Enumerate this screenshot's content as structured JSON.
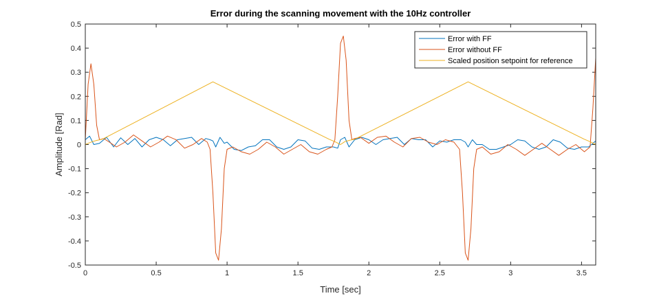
{
  "chart_data": {
    "type": "line",
    "title": "Error during the scanning movement with the 10Hz controller",
    "xlabel": "Time [sec]",
    "ylabel": "Amplitude [Rad]",
    "xlim": [
      0,
      3.6
    ],
    "ylim": [
      -0.5,
      0.5
    ],
    "xticks": [
      0,
      0.5,
      1,
      1.5,
      2,
      2.5,
      3,
      3.5
    ],
    "xtick_labels": [
      "0",
      "0.5",
      "1",
      "1.5",
      "2",
      "2.5",
      "3",
      "3.5"
    ],
    "yticks": [
      -0.5,
      -0.4,
      -0.3,
      -0.2,
      -0.1,
      0,
      0.1,
      0.2,
      0.3,
      0.4,
      0.5
    ],
    "ytick_labels": [
      "-0.5",
      "-0.4",
      "-0.3",
      "-0.2",
      "-0.1",
      "0",
      "0.1",
      "0.2",
      "0.3",
      "0.4",
      "0.5"
    ],
    "grid": false,
    "legend_position": "top-right",
    "series": [
      {
        "name": "Error with FF",
        "color": "#0072BD",
        "x": [
          0,
          0.03,
          0.06,
          0.1,
          0.15,
          0.2,
          0.25,
          0.3,
          0.35,
          0.4,
          0.45,
          0.5,
          0.55,
          0.6,
          0.65,
          0.7,
          0.75,
          0.8,
          0.85,
          0.88,
          0.9,
          0.92,
          0.95,
          0.98,
          1.0,
          1.05,
          1.1,
          1.15,
          1.2,
          1.25,
          1.3,
          1.35,
          1.4,
          1.45,
          1.5,
          1.55,
          1.6,
          1.65,
          1.7,
          1.75,
          1.78,
          1.8,
          1.83,
          1.86,
          1.9,
          1.95,
          2.0,
          2.05,
          2.1,
          2.15,
          2.2,
          2.25,
          2.3,
          2.35,
          2.4,
          2.45,
          2.5,
          2.55,
          2.6,
          2.65,
          2.68,
          2.7,
          2.73,
          2.76,
          2.8,
          2.85,
          2.9,
          2.95,
          3.0,
          3.05,
          3.1,
          3.15,
          3.2,
          3.25,
          3.3,
          3.35,
          3.4,
          3.45,
          3.5,
          3.55,
          3.58,
          3.6
        ],
        "y": [
          0.02,
          0.035,
          0.0,
          0.005,
          0.03,
          -0.01,
          0.028,
          0.0,
          0.025,
          -0.01,
          0.02,
          0.03,
          0.02,
          -0.005,
          0.02,
          0.025,
          0.03,
          0.0,
          0.025,
          0.02,
          0.015,
          -0.01,
          0.03,
          0.005,
          0.01,
          -0.02,
          -0.025,
          -0.01,
          -0.005,
          0.02,
          0.02,
          -0.01,
          -0.02,
          -0.01,
          0.02,
          0.015,
          -0.015,
          -0.02,
          -0.01,
          -0.01,
          -0.015,
          0.02,
          0.03,
          -0.01,
          0.02,
          0.03,
          0.02,
          0.0,
          0.02,
          0.025,
          0.03,
          0.0,
          0.025,
          0.02,
          0.02,
          -0.01,
          0.015,
          0.01,
          0.02,
          0.02,
          0.01,
          -0.01,
          0.02,
          0.0,
          0.0,
          -0.02,
          -0.02,
          -0.01,
          0.0,
          0.02,
          0.015,
          -0.01,
          -0.02,
          -0.01,
          0.02,
          0.01,
          -0.015,
          -0.02,
          -0.01,
          -0.01,
          0.005,
          0.015
        ]
      },
      {
        "name": "Error without FF",
        "color": "#D95319",
        "x": [
          0,
          0.02,
          0.04,
          0.06,
          0.08,
          0.1,
          0.13,
          0.17,
          0.22,
          0.28,
          0.34,
          0.4,
          0.46,
          0.52,
          0.58,
          0.64,
          0.7,
          0.76,
          0.82,
          0.86,
          0.88,
          0.9,
          0.92,
          0.94,
          0.96,
          0.98,
          1.0,
          1.04,
          1.1,
          1.16,
          1.22,
          1.28,
          1.34,
          1.4,
          1.46,
          1.52,
          1.58,
          1.64,
          1.7,
          1.74,
          1.76,
          1.78,
          1.8,
          1.82,
          1.84,
          1.86,
          1.88,
          1.9,
          1.94,
          2.0,
          2.06,
          2.12,
          2.18,
          2.24,
          2.3,
          2.36,
          2.42,
          2.48,
          2.54,
          2.6,
          2.64,
          2.66,
          2.68,
          2.7,
          2.72,
          2.74,
          2.76,
          2.8,
          2.86,
          2.92,
          2.98,
          3.04,
          3.1,
          3.16,
          3.22,
          3.28,
          3.34,
          3.4,
          3.46,
          3.52,
          3.56,
          3.58,
          3.6
        ],
        "y": [
          0.02,
          0.25,
          0.335,
          0.25,
          0.08,
          0.02,
          0.025,
          0.01,
          -0.01,
          0.01,
          0.04,
          0.015,
          -0.01,
          0.01,
          0.035,
          0.02,
          -0.015,
          0.0,
          0.025,
          0.01,
          -0.02,
          -0.2,
          -0.45,
          -0.48,
          -0.35,
          -0.1,
          -0.02,
          -0.01,
          -0.03,
          -0.04,
          -0.02,
          0.01,
          -0.01,
          -0.04,
          -0.02,
          0.0,
          -0.03,
          -0.04,
          -0.02,
          -0.01,
          0.02,
          0.2,
          0.42,
          0.45,
          0.35,
          0.1,
          0.02,
          0.025,
          0.03,
          0.005,
          0.03,
          0.035,
          0.01,
          -0.01,
          0.025,
          0.03,
          0.01,
          0.0,
          0.02,
          0.01,
          -0.02,
          -0.2,
          -0.45,
          -0.48,
          -0.35,
          -0.1,
          -0.02,
          -0.01,
          -0.04,
          -0.03,
          0.0,
          -0.02,
          -0.045,
          -0.02,
          0.005,
          -0.02,
          -0.045,
          -0.02,
          0.0,
          -0.03,
          -0.01,
          0.15,
          0.36
        ]
      },
      {
        "name": "Scaled position setpoint for reference",
        "color": "#EDB120",
        "x": [
          0,
          0.02,
          0.05,
          0.08,
          0.12,
          0.9,
          1.72,
          1.76,
          1.8,
          1.83,
          1.86,
          1.9,
          2.7,
          3.52,
          3.56,
          3.6
        ],
        "y": [
          0.0,
          0.005,
          0.012,
          0.017,
          0.022,
          0.26,
          0.022,
          0.012,
          0.0,
          0.012,
          0.017,
          0.022,
          0.26,
          0.022,
          0.012,
          0.0
        ]
      }
    ]
  }
}
